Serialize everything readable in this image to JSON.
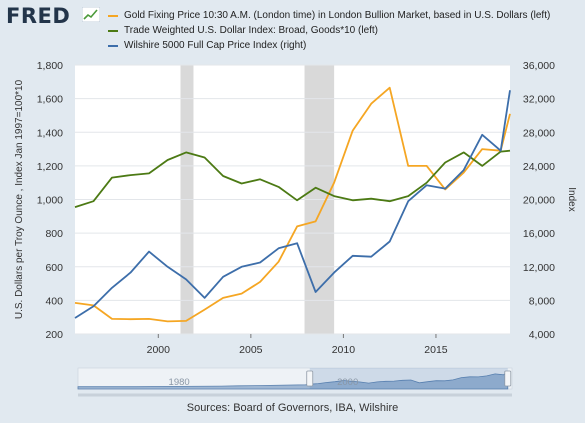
{
  "brand": {
    "name": "FRED"
  },
  "source_text": "Sources: Board of Governors, IBA, Wilshire",
  "colors": {
    "gold": "#f5a623",
    "dollar": "#4c7a14",
    "wilshire": "#3d6eaa",
    "recession": "#d9d9d9",
    "background": "#e1e9f0",
    "plot_bg": "#ffffff"
  },
  "chart_data": {
    "type": "line",
    "legend_placement": "top",
    "grid": true,
    "xlim": [
      1995.5,
      2019.0
    ],
    "x_ticks": [
      2000,
      2005,
      2010,
      2015
    ],
    "x_tick_labels": [
      "2000",
      "2005",
      "2010",
      "2015"
    ],
    "left_axis": {
      "label": "U.S. Dollars per Troy Ounce , Index Jan 1997=100*10",
      "ylim": [
        200,
        1800
      ],
      "ticks": [
        200,
        400,
        600,
        800,
        1000,
        1200,
        1400,
        1600,
        1800
      ],
      "tick_labels": [
        "200",
        "400",
        "600",
        "800",
        "1,000",
        "1,200",
        "1,400",
        "1,600",
        "1,800"
      ]
    },
    "right_axis": {
      "label": "Index",
      "ylim": [
        4000,
        36000
      ],
      "ticks": [
        4000,
        8000,
        12000,
        16000,
        20000,
        24000,
        28000,
        32000,
        36000
      ],
      "tick_labels": [
        "4,000",
        "8,000",
        "12,000",
        "16,000",
        "20,000",
        "24,000",
        "28,000",
        "32,000",
        "36,000"
      ]
    },
    "recessions": [
      [
        2001.2,
        2001.9
      ],
      [
        2007.9,
        2009.5
      ]
    ],
    "series": [
      {
        "name": "Gold Fixing Price 10:30 A.M. (London time) in London Bullion Market, based in U.S. Dollars (left)",
        "axis": "left",
        "color": "#f5a623",
        "x": [
          1995.5,
          1996.5,
          1997.5,
          1998.5,
          1999.5,
          2000.5,
          2001.5,
          2002.5,
          2003.5,
          2004.5,
          2005.5,
          2006.5,
          2007.5,
          2008.5,
          2009.5,
          2010.5,
          2011.5,
          2012.5,
          2013.5,
          2014.5,
          2015.5,
          2016.5,
          2017.5,
          2018.5,
          2019.0
        ],
        "y": [
          385,
          370,
          290,
          288,
          290,
          275,
          278,
          345,
          415,
          440,
          510,
          630,
          840,
          870,
          1100,
          1410,
          1570,
          1665,
          1200,
          1200,
          1060,
          1160,
          1300,
          1290,
          1510
        ]
      },
      {
        "name": "Trade Weighted U.S. Dollar Index: Broad, Goods*10 (left)",
        "axis": "left",
        "color": "#4c7a14",
        "x": [
          1995.5,
          1996.5,
          1997.5,
          1998.5,
          1999.5,
          2000.5,
          2001.5,
          2002.5,
          2003.5,
          2004.5,
          2005.5,
          2006.5,
          2007.5,
          2008.5,
          2009.5,
          2010.5,
          2011.5,
          2012.5,
          2013.5,
          2014.5,
          2015.5,
          2016.5,
          2017.5,
          2018.5,
          2019.0
        ],
        "y": [
          955,
          990,
          1130,
          1145,
          1155,
          1235,
          1280,
          1250,
          1140,
          1095,
          1120,
          1075,
          995,
          1070,
          1020,
          995,
          1005,
          990,
          1020,
          1100,
          1220,
          1280,
          1200,
          1285,
          1290
        ]
      },
      {
        "name": "Wilshire 5000 Full Cap Price Index (right)",
        "axis": "right",
        "color": "#3d6eaa",
        "x": [
          1995.5,
          1996.5,
          1997.5,
          1998.5,
          1999.5,
          2000.5,
          2001.5,
          2002.5,
          2003.5,
          2004.5,
          2005.5,
          2006.5,
          2007.5,
          2008.5,
          2009.5,
          2010.5,
          2011.5,
          2012.5,
          2013.5,
          2014.5,
          2015.5,
          2016.5,
          2017.5,
          2018.5,
          2019.0
        ],
        "y": [
          5900,
          7300,
          9500,
          11300,
          13800,
          12000,
          10500,
          8300,
          10800,
          12000,
          12500,
          14200,
          14800,
          9000,
          11300,
          13300,
          13200,
          15000,
          19800,
          21700,
          21300,
          23500,
          27700,
          25800,
          33000
        ]
      }
    ]
  }
}
